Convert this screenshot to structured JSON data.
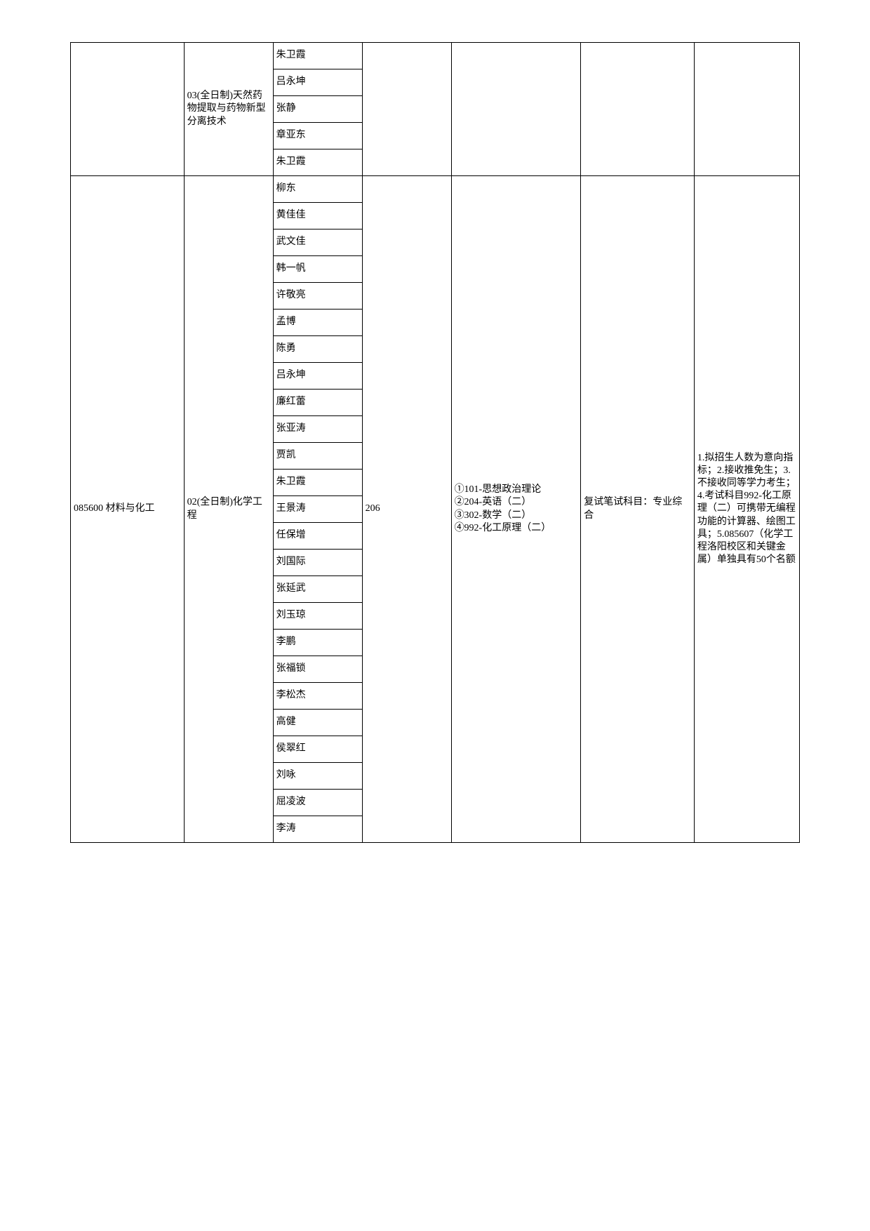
{
  "section1": {
    "direction_label": "03(全日制)天然药物提取与药物新型分离技术",
    "names": [
      "朱卫霞",
      "吕永坤",
      "张静",
      "章亚东",
      "朱卫霞"
    ]
  },
  "section2": {
    "code_label": "085600 材料与化工",
    "direction_label": "02(全日制)化学工程",
    "quota": "206",
    "exam_subjects": "①101-思想政治理论\n②204-英语（二）\n③302-数学（二）\n④992-化工原理（二）",
    "retest": "复试笔试科目：专业综合",
    "notes": "1.拟招生人数为意向指标；2.接收推免生；3.不接收同等学力考生；4.考试科目992-化工原理（二）可携带无编程功能的计算器、绘图工具；5.085607（化学工程洛阳校区和关键金属）单独具有50个名额",
    "names": [
      "柳东",
      "黄佳佳",
      "武文佳",
      "韩一帆",
      "许敬亮",
      "孟博",
      "陈勇",
      "吕永坤",
      "廉红蕾",
      "张亚涛",
      "贾凯",
      "朱卫霞",
      "王景涛",
      "任保增",
      "刘国际",
      "张延武",
      "刘玉琼",
      "李鹏",
      "张福锁",
      "李松杰",
      "高健",
      "侯翠红",
      "刘咏",
      "屈凌波",
      "李涛"
    ]
  }
}
